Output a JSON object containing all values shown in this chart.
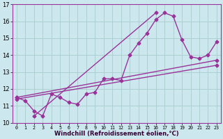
{
  "title": "",
  "xlabel": "Windchill (Refroidissement éolien,°C)",
  "ylabel": "",
  "background_color": "#cce8ee",
  "grid_color": "#aacccc",
  "line_color": "#993399",
  "xlim": [
    -0.5,
    23.5
  ],
  "ylim": [
    10,
    17
  ],
  "yticks": [
    10,
    11,
    12,
    13,
    14,
    15,
    16,
    17
  ],
  "xticks": [
    0,
    1,
    2,
    3,
    4,
    5,
    6,
    7,
    8,
    9,
    10,
    11,
    12,
    13,
    14,
    15,
    16,
    17,
    18,
    19,
    20,
    21,
    22,
    23
  ],
  "line1_x": [
    0,
    1,
    2,
    3,
    4,
    5,
    6,
    7,
    8,
    9,
    10,
    11,
    12,
    13,
    14,
    15,
    16,
    17,
    18,
    19,
    20,
    21,
    22,
    23
  ],
  "line1_y": [
    11.5,
    11.3,
    10.7,
    10.4,
    11.7,
    11.5,
    11.2,
    11.1,
    11.7,
    11.8,
    12.6,
    12.6,
    12.5,
    14.0,
    14.7,
    15.3,
    16.1,
    16.5,
    16.3,
    14.9,
    13.9,
    13.8,
    14.0,
    14.8
  ],
  "line2_x": [
    0,
    23
  ],
  "line2_y": [
    11.4,
    13.4
  ],
  "line3_x": [
    0,
    23
  ],
  "line3_y": [
    11.5,
    13.7
  ],
  "line4_x": [
    2,
    16
  ],
  "line4_y": [
    10.4,
    16.5
  ],
  "marker": "D",
  "markersize": 2.5,
  "linewidth": 1.0
}
